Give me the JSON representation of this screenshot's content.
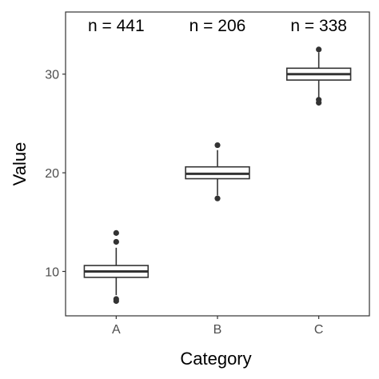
{
  "chart_data": {
    "type": "boxplot",
    "xlabel": "Category",
    "ylabel": "Value",
    "ylim": [
      5.5,
      36.3
    ],
    "yticks": [
      10,
      20,
      30
    ],
    "grid": false,
    "categories": [
      "A",
      "B",
      "C"
    ],
    "boxes": [
      {
        "category": "A",
        "n_label": "n = 441",
        "whisker_low": 7.6,
        "q1": 9.4,
        "median": 10.0,
        "q3": 10.6,
        "whisker_high": 12.4,
        "outliers": [
          13.0,
          13.9,
          7.0,
          7.2
        ]
      },
      {
        "category": "B",
        "n_label": "n = 206",
        "whisker_low": 17.7,
        "q1": 19.4,
        "median": 19.9,
        "q3": 20.6,
        "whisker_high": 22.3,
        "outliers": [
          17.4,
          22.8
        ]
      },
      {
        "category": "C",
        "n_label": "n = 338",
        "whisker_low": 27.6,
        "q1": 29.4,
        "median": 30.0,
        "q3": 30.6,
        "whisker_high": 32.2,
        "outliers": [
          27.1,
          27.4,
          32.5
        ]
      }
    ],
    "colors": {
      "box_fill": "#ffffff",
      "stroke": "#333333",
      "outlier": "#333333",
      "panel_border": "#333333"
    }
  }
}
